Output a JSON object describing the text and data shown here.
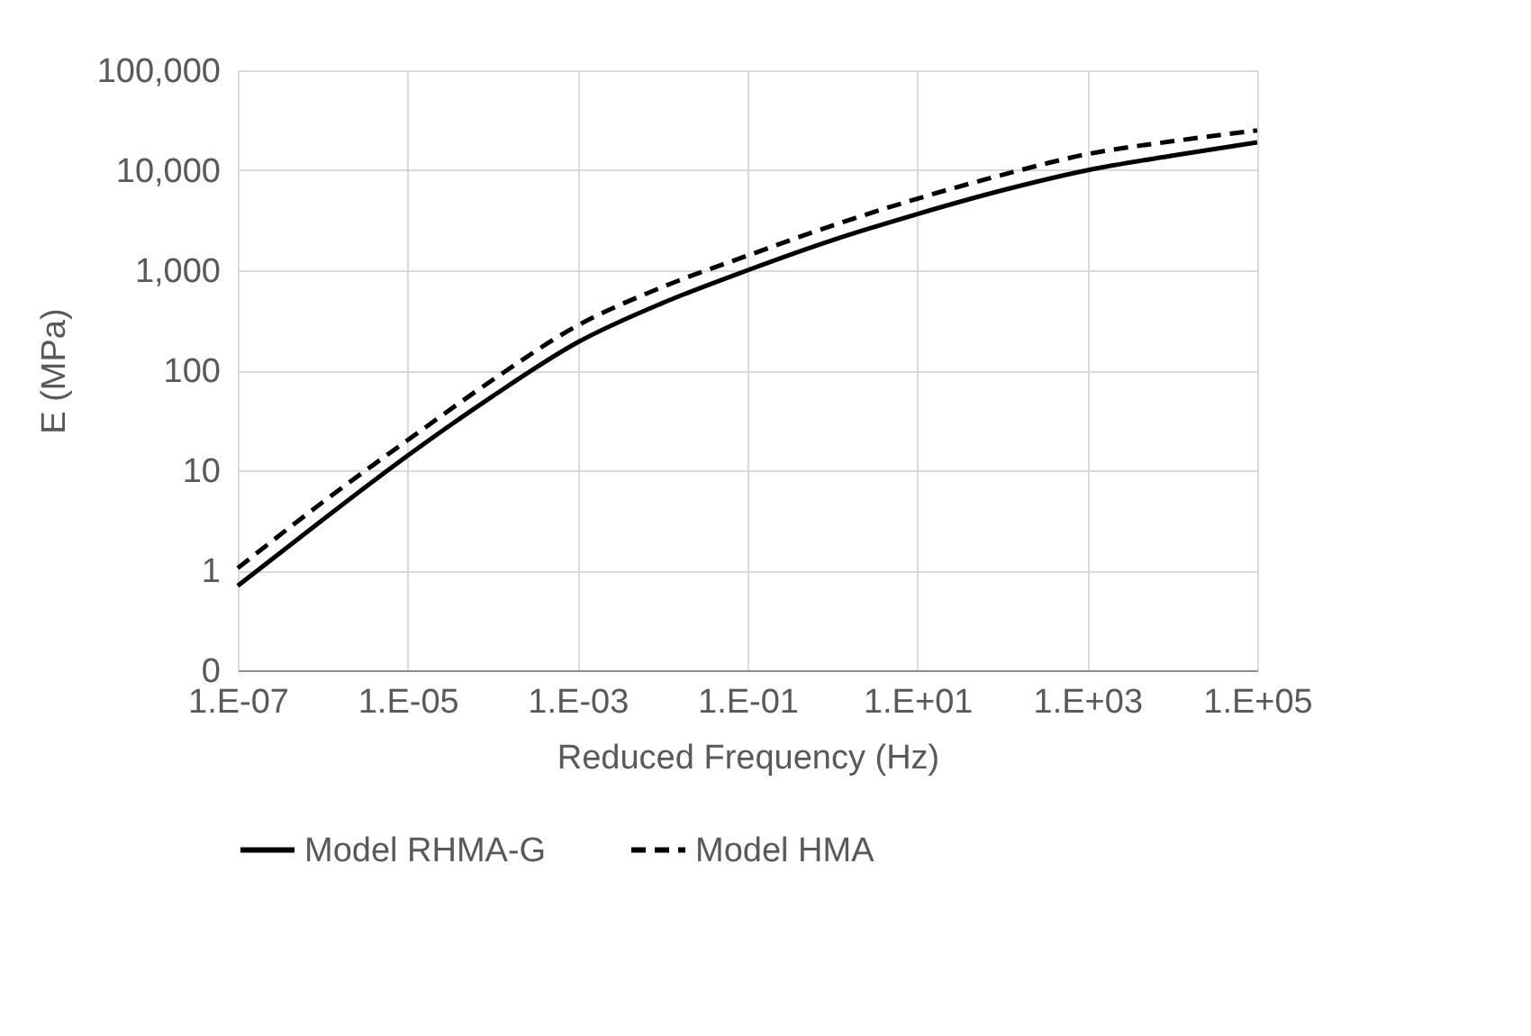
{
  "chart_data": {
    "type": "line",
    "xlabel": "Reduced Frequency (Hz)",
    "ylabel": "E  (MPa)",
    "categories": [
      "1.E-07",
      null,
      "1.E-05",
      null,
      "1.E-03",
      null,
      "1.E-01",
      null,
      "1.E+01",
      null,
      "1.E+03",
      null,
      "1.E+05"
    ],
    "series": [
      {
        "name": "Model RHMA-G",
        "color": "#000000",
        "line_style": "solid",
        "values": [
          0.7,
          3.2,
          14,
          55,
          190,
          470,
          1000,
          2000,
          3650,
          6300,
          10000,
          14000,
          19000
        ]
      },
      {
        "name": "Model HMA",
        "color": "#000000",
        "line_style": "dashed",
        "values": [
          1.05,
          4.8,
          20,
          80,
          280,
          680,
          1400,
          2800,
          5200,
          9000,
          14500,
          19500,
          25000
        ]
      }
    ],
    "log": "y",
    "ylim": [
      0.1,
      100000
    ],
    "yticks": [
      {
        "value": 0.1,
        "label": "0"
      },
      1,
      10,
      100,
      {
        "value": 1000,
        "label": "1,000"
      },
      {
        "value": 10000,
        "label": "10,000"
      },
      {
        "value": 100000,
        "label": "100,000"
      }
    ],
    "grid": true,
    "legend": "bottom",
    "marker": "none"
  }
}
